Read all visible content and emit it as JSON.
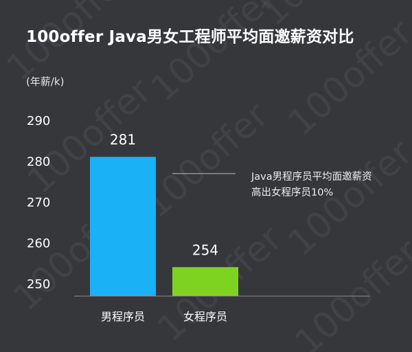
{
  "title": "100offer Java男女工程师平均面邀薪资对比",
  "unit_label": "(年薪/k)",
  "annotation": {
    "text": "Java男程序员平均面邀薪资高出女程序员10%"
  },
  "watermark": {
    "text": "100offer"
  },
  "colors": {
    "background": "#36373b",
    "text": "#ffffff",
    "axis": "#8a8a8a",
    "male_bar": "#1ab1f7",
    "female_bar": "#7ed321"
  },
  "chart_data": {
    "type": "bar",
    "title": "100offer Java男女工程师平均面邀薪资对比",
    "ylabel": "(年薪/k)",
    "xlabel": "",
    "categories": [
      "男程序员",
      "女程序员"
    ],
    "values": [
      281,
      254
    ],
    "data_labels": [
      "281",
      "254"
    ],
    "yticks": [
      250,
      260,
      270,
      280,
      290
    ],
    "ytick_labels": [
      "250",
      "260",
      "270",
      "280",
      "290"
    ],
    "ylim": [
      247,
      290
    ],
    "bar_colors": [
      "#1ab1f7",
      "#7ed321"
    ],
    "grid": false,
    "legend": "none",
    "annotation": "Java男程序员平均面邀薪资高出女程序员10%"
  }
}
